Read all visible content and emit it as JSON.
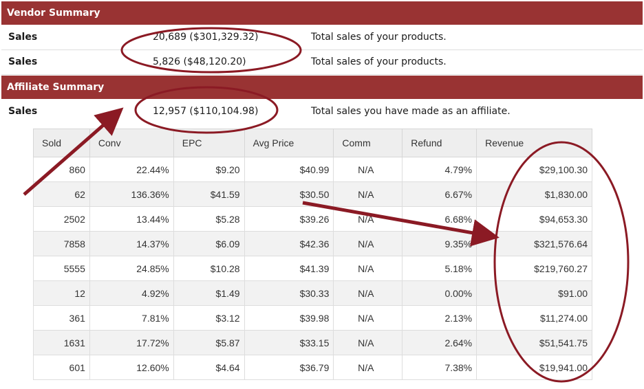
{
  "vendor_summary": {
    "title": "Vendor Summary",
    "rows": [
      {
        "label": "Sales",
        "value": "20,689 ($301,329.32)",
        "description": "Total sales of your products."
      },
      {
        "label": "Sales",
        "value": "5,826 ($48,120.20)",
        "description": "Total sales of your products."
      }
    ]
  },
  "affiliate_summary": {
    "title": "Affiliate Summary",
    "rows": [
      {
        "label": "Sales",
        "value": "12,957 ($110,104.98)",
        "description": "Total sales you have made as an affiliate."
      }
    ]
  },
  "table": {
    "headers": [
      "Sold",
      "Conv",
      "EPC",
      "Avg Price",
      "Comm",
      "Refund",
      "Revenue"
    ],
    "rows": [
      [
        "860",
        "22.44%",
        "$9.20",
        "$40.99",
        "N/A",
        "4.79%",
        "$29,100.30"
      ],
      [
        "62",
        "136.36%",
        "$41.59",
        "$30.50",
        "N/A",
        "6.67%",
        "$1,830.00"
      ],
      [
        "2502",
        "13.44%",
        "$5.28",
        "$39.26",
        "N/A",
        "6.68%",
        "$94,653.30"
      ],
      [
        "7858",
        "14.37%",
        "$6.09",
        "$42.36",
        "N/A",
        "9.35%",
        "$321,576.64"
      ],
      [
        "5555",
        "24.85%",
        "$10.28",
        "$41.39",
        "N/A",
        "5.18%",
        "$219,760.27"
      ],
      [
        "12",
        "4.92%",
        "$1.49",
        "$30.33",
        "N/A",
        "0.00%",
        "$91.00"
      ],
      [
        "361",
        "7.81%",
        "$3.12",
        "$39.98",
        "N/A",
        "2.13%",
        "$11,274.00"
      ],
      [
        "1631",
        "17.72%",
        "$5.87",
        "$33.15",
        "N/A",
        "2.64%",
        "$51,541.75"
      ],
      [
        "601",
        "12.60%",
        "$4.64",
        "$36.79",
        "N/A",
        "7.38%",
        "$19,941.00"
      ]
    ]
  },
  "annotation_color": "#8b1a24",
  "header_color": "#993333"
}
